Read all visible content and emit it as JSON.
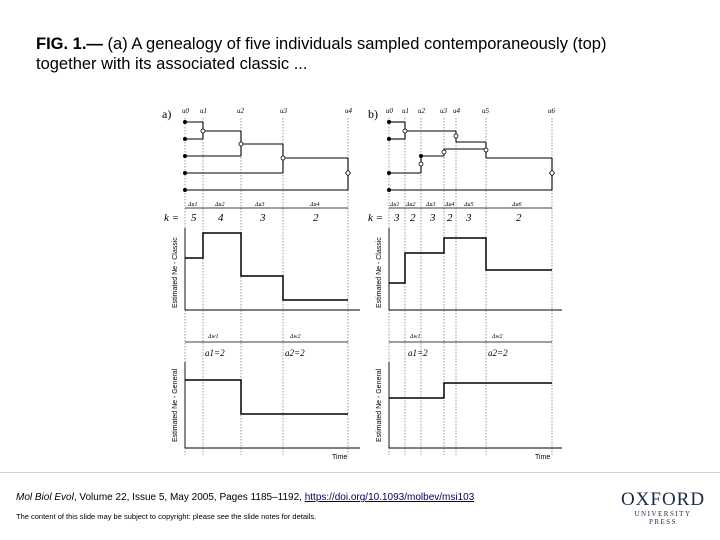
{
  "title": {
    "label": "FIG. 1.—",
    "text": " (a) A genealogy of five individuals sampled contemporaneously (top) together with its associated classic ..."
  },
  "figure": {
    "panel_a": {
      "label": "a)",
      "u_labels": [
        "u0",
        "u1",
        "u2",
        "u3",
        "u4"
      ],
      "du_labels": [
        "Δu1",
        "Δu2",
        "Δu3",
        "Δu4"
      ],
      "k_label": "k =",
      "k_values": [
        "5",
        "4",
        "3",
        "2"
      ],
      "ylabel_classic": "Estimated Ne - Classic",
      "dw_labels": [
        "Δw1",
        "Δw2"
      ],
      "a_labels": [
        "a1=2",
        "a2=2"
      ],
      "ylabel_general": "Estimated Ne - General",
      "xlabel": "Time"
    },
    "panel_b": {
      "label": "b)",
      "u_labels": [
        "u0",
        "u1",
        "u2",
        "u3",
        "u4",
        "u5",
        "u6"
      ],
      "du_labels": [
        "Δu1",
        "Δu2",
        "Δu3",
        "Δu4",
        "Δu5",
        "Δu6"
      ],
      "k_label": "k =",
      "k_values": [
        "3",
        "2",
        "3",
        "2",
        "3",
        "2"
      ],
      "ylabel_classic": "Estimated Ne - Classic",
      "dw_labels": [
        "Δw1",
        "Δw2"
      ],
      "a_labels": [
        "a1=2",
        "a2=2"
      ],
      "ylabel_general": "Estimated Ne - General",
      "xlabel": "Time"
    }
  },
  "footer": {
    "journal": "Mol Biol Evol",
    "citation": ", Volume 22, Issue 5, May 2005, Pages 1185–1192, ",
    "doi": "https://doi.org/10.1093/molbev/msi103",
    "copyright": "The content of this slide may be subject to copyright: please see the slide notes for details.",
    "logo_main": "OXFORD",
    "logo_sub": "UNIVERSITY PRESS"
  }
}
